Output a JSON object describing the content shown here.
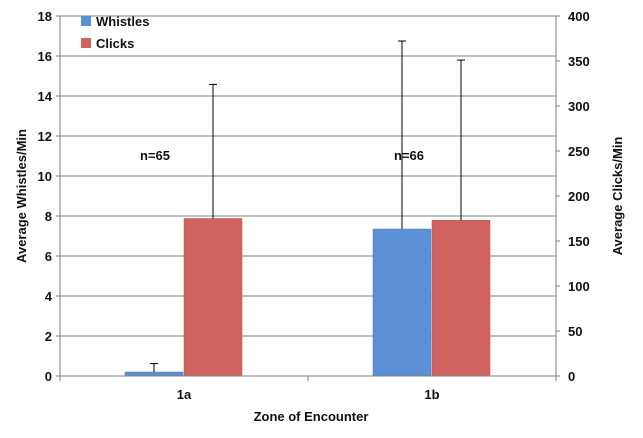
{
  "chart_data": {
    "type": "bar",
    "categories": [
      "1a",
      "1b"
    ],
    "xlabel": "Zone of Encounter",
    "ylabel_left": "Average Whistles/Min",
    "ylabel_right": "Average Clicks/Min",
    "ylim_left": [
      0,
      18
    ],
    "ylim_right": [
      0,
      400
    ],
    "yticks_left": [
      "0",
      "2",
      "4",
      "6",
      "8",
      "10",
      "12",
      "14",
      "16",
      "18"
    ],
    "yticks_right": [
      "0",
      "50",
      "100",
      "150",
      "200",
      "250",
      "300",
      "350",
      "400"
    ],
    "grid": true,
    "legend_position": "top-left",
    "series": [
      {
        "name": "Whistles",
        "axis": "left",
        "color": "#5b8fd6",
        "values": [
          0.2,
          7.35
        ],
        "error_upper": [
          0.62,
          16.75
        ]
      },
      {
        "name": "Clicks",
        "axis": "right",
        "color": "#d0625f",
        "values": [
          175,
          173
        ],
        "error_upper": [
          324,
          351
        ]
      }
    ],
    "annotations": [
      "n=65",
      "n=66"
    ]
  }
}
